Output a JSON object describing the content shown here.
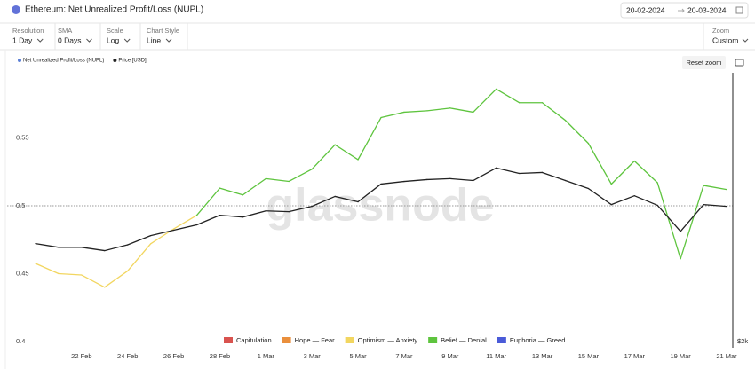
{
  "header": {
    "title": "Ethereum: Net Unrealized Profit/Loss (NUPL)",
    "date_from": "20-02-2024",
    "date_to": "20-03-2024"
  },
  "controls": [
    {
      "label": "Resolution",
      "value": "1 Day"
    },
    {
      "label": "SMA",
      "value": "0 Days"
    },
    {
      "label": "Scale",
      "value": "Log"
    },
    {
      "label": "Chart Style",
      "value": "Line"
    }
  ],
  "zoom": {
    "label": "Zoom",
    "value": "Custom"
  },
  "reset_zoom": "Reset zoom",
  "chart_data": {
    "type": "line",
    "watermark": "glassnode",
    "categories": [
      null,
      null,
      "22 Feb",
      null,
      "24 Feb",
      null,
      "26 Feb",
      null,
      "28 Feb",
      null,
      "1 Mar",
      null,
      "3 Mar",
      null,
      "5 Mar",
      null,
      "7 Mar",
      null,
      "9 Mar",
      null,
      "11 Mar",
      null,
      "13 Mar",
      null,
      "15 Mar",
      null,
      "17 Mar",
      null,
      "19 Mar",
      null,
      "21 Mar"
    ],
    "ylim": [
      0.4,
      0.6
    ],
    "yticks": [
      0.4,
      0.45,
      0.5,
      0.55
    ],
    "reference_line": 0.5,
    "y2lim": [
      2000,
      6100
    ],
    "y2ticks": [
      {
        "value": 2000,
        "label": "$2k"
      }
    ],
    "y2_log": true,
    "zones": [
      {
        "name": "Capitulation",
        "color": "#d9534f"
      },
      {
        "name": "Hope — Fear",
        "color": "#ea8f3c"
      },
      {
        "name": "Optimism — Anxiety",
        "color": "#f2d660"
      },
      {
        "name": "Belief — Denial",
        "color": "#5ec43e"
      },
      {
        "name": "Euphoria — Greed",
        "color": "#4a5bd8"
      }
    ],
    "series": [
      {
        "name": "Net Unrealized Profit/Loss (NUPL)",
        "color": "#5b7fd6",
        "values": [
          0.4575,
          0.45,
          0.449,
          0.44,
          0.452,
          0.472,
          0.483,
          0.493,
          0.513,
          0.508,
          0.52,
          0.518,
          0.527,
          0.545,
          0.534,
          0.565,
          0.569,
          0.57,
          0.572,
          0.569,
          0.586,
          0.576,
          0.576,
          0.563,
          0.546,
          0.516,
          0.533,
          0.517,
          0.461,
          0.515,
          0.512
        ],
        "zone": [
          2,
          2,
          2,
          2,
          2,
          2,
          2,
          2,
          3,
          3,
          3,
          3,
          3,
          3,
          3,
          3,
          3,
          3,
          3,
          3,
          3,
          3,
          3,
          3,
          3,
          3,
          3,
          3,
          2,
          3,
          3
        ]
      },
      {
        "name": "Price [USD]",
        "color": "#222222",
        "axis": "y2",
        "values": [
          2990,
          2945,
          2945,
          2905,
          2975,
          3090,
          3160,
          3230,
          3360,
          3335,
          3420,
          3410,
          3485,
          3630,
          3550,
          3820,
          3860,
          3890,
          3905,
          3875,
          4080,
          3990,
          4005,
          3875,
          3750,
          3510,
          3640,
          3500,
          3145,
          3510,
          3485
        ]
      }
    ]
  }
}
